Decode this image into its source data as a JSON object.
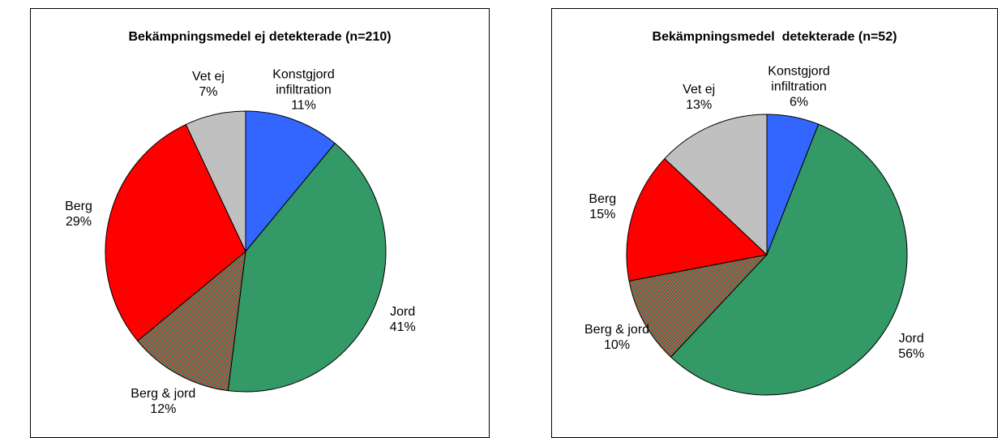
{
  "chart_data": [
    {
      "type": "pie",
      "title": "Bekämpningsmedel ej detekterade (n=210)",
      "categories": [
        "Konstgjord infiltration",
        "Jord",
        "Berg & jord",
        "Berg",
        "Vet ej"
      ],
      "values": [
        11,
        41,
        12,
        29,
        7
      ],
      "value_labels": [
        "11%",
        "41%",
        "12%",
        "29%",
        "7%"
      ],
      "colors": [
        "#3366ff",
        "#339966",
        "#cc3333",
        "#ff0000",
        "#c0c0c0"
      ]
    },
    {
      "type": "pie",
      "title": "Bekämpningsmedel  detekterade (n=52)",
      "categories": [
        "Konstgjord infiltration",
        "Jord",
        "Berg & jord",
        "Berg",
        "Vet ej"
      ],
      "values": [
        6,
        56,
        10,
        15,
        13
      ],
      "value_labels": [
        "6%",
        "56%",
        "10%",
        "15%",
        "13%"
      ],
      "colors": [
        "#3366ff",
        "#339966",
        "#cc3333",
        "#ff0000",
        "#c0c0c0"
      ]
    }
  ]
}
